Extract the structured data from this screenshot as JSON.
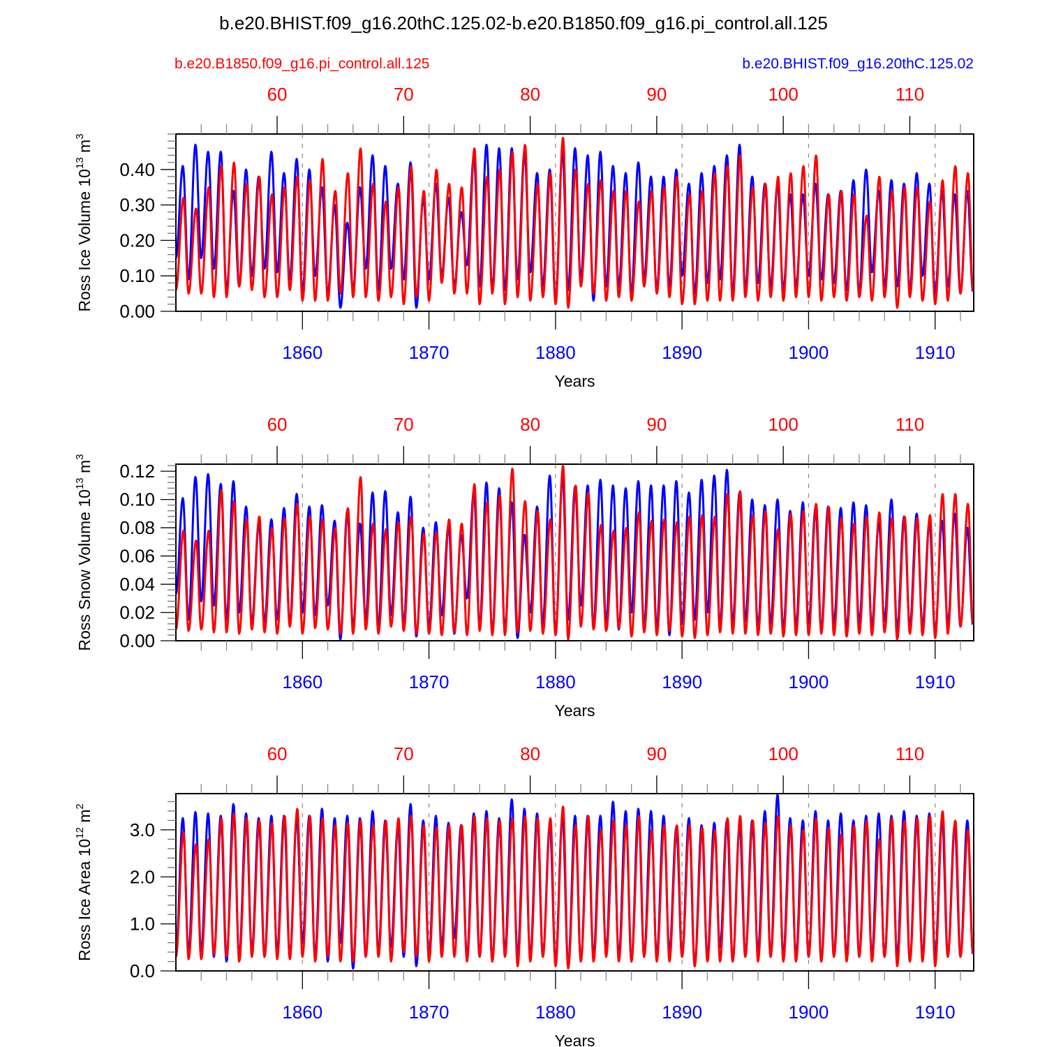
{
  "title": "b.e20.BHIST.f09_g16.20thC.125.02-b.e20.B1850.f09_g16.pi_control.all.125",
  "legend": {
    "left_label": "b.e20.B1850.f09_g16.pi_control.all.125",
    "right_label": "b.e20.BHIST.f09_g16.20thC.125.02",
    "left_color": "#ff0000",
    "right_color": "#0000ff"
  },
  "chart_data": [
    {
      "type": "line",
      "title": "",
      "ylabel": "Ross Ice Volume 10^13 m^3",
      "ylabel_base": "Ross Ice Volume 10",
      "ylabel_exp": "13",
      "ylabel_unit": "m",
      "ylabel_unit_exp": "3",
      "xlabel": "Years",
      "xlim": [
        1850.0,
        1913.05
      ],
      "ylim": [
        0.0,
        0.5
      ],
      "yticks": [
        0.0,
        0.1,
        0.2,
        0.3,
        0.4
      ],
      "ytick_labels": [
        "0.00",
        "0.10",
        "0.20",
        "0.30",
        "0.40"
      ],
      "x_bottom_ticks": [
        1860,
        1870,
        1880,
        1890,
        1900,
        1910
      ],
      "x_top_ticks": [
        60,
        70,
        80,
        90,
        100,
        110
      ],
      "x_top_offset": 1798,
      "grid": "dashed vertical at bottom-axis major ticks",
      "series": [
        {
          "name": "b.e20.BHIST.f09_g16.20thC.125.02",
          "color": "#0000ff",
          "annual_max": [
            0.41,
            0.47,
            0.45,
            0.45,
            0.34,
            0.4,
            0.38,
            0.45,
            0.39,
            0.43,
            0.4,
            0.35,
            0.3,
            0.25,
            0.35,
            0.44,
            0.41,
            0.36,
            0.42,
            0.32,
            0.36,
            0.32,
            0.28,
            0.44,
            0.47,
            0.46,
            0.46,
            0.45,
            0.39,
            0.4,
            0.45,
            0.46,
            0.44,
            0.45,
            0.41,
            0.39,
            0.42,
            0.38,
            0.38,
            0.4,
            0.36,
            0.39,
            0.41,
            0.44,
            0.47,
            0.38,
            0.36,
            0.36,
            0.33,
            0.33,
            0.36,
            0.33,
            0.34,
            0.37,
            0.4,
            0.34,
            0.37,
            0.36,
            0.39,
            0.36,
            0.34,
            0.33,
            0.34
          ],
          "annual_min": [
            0.15,
            0.09,
            0.15,
            0.12,
            0.06,
            0.07,
            0.1,
            0.12,
            0.11,
            0.09,
            0.05,
            0.1,
            0.05,
            0.01,
            0.06,
            0.12,
            0.06,
            0.12,
            0.09,
            0.01,
            0.09,
            0.1,
            0.07,
            0.13,
            0.07,
            0.06,
            0.06,
            0.09,
            0.11,
            0.07,
            0.03,
            0.06,
            0.09,
            0.03,
            0.07,
            0.07,
            0.05,
            0.09,
            0.06,
            0.07,
            0.1,
            0.05,
            0.08,
            0.09,
            0.05,
            0.06,
            0.08,
            0.07,
            0.06,
            0.07,
            0.1,
            0.09,
            0.08,
            0.06,
            0.05,
            0.11,
            0.07,
            0.07,
            0.06,
            0.1,
            0.05,
            0.07,
            0.05
          ]
        },
        {
          "name": "b.e20.B1850.f09_g16.pi_control.all.125",
          "color": "#ff0000",
          "annual_max": [
            0.32,
            0.29,
            0.35,
            0.41,
            0.42,
            0.36,
            0.38,
            0.33,
            0.35,
            0.38,
            0.37,
            0.43,
            0.34,
            0.39,
            0.46,
            0.36,
            0.31,
            0.35,
            0.41,
            0.34,
            0.4,
            0.36,
            0.35,
            0.46,
            0.38,
            0.4,
            0.45,
            0.47,
            0.36,
            0.39,
            0.49,
            0.4,
            0.36,
            0.37,
            0.34,
            0.34,
            0.31,
            0.34,
            0.35,
            0.38,
            0.33,
            0.34,
            0.39,
            0.41,
            0.44,
            0.35,
            0.36,
            0.38,
            0.39,
            0.41,
            0.44,
            0.33,
            0.34,
            0.33,
            0.27,
            0.38,
            0.34,
            0.35,
            0.35,
            0.31,
            0.37,
            0.41,
            0.39
          ],
          "annual_min": [
            0.06,
            0.05,
            0.05,
            0.04,
            0.04,
            0.07,
            0.06,
            0.04,
            0.04,
            0.06,
            0.03,
            0.03,
            0.03,
            0.05,
            0.04,
            0.04,
            0.03,
            0.04,
            0.02,
            0.04,
            0.03,
            0.08,
            0.05,
            0.05,
            0.02,
            0.05,
            0.02,
            0.04,
            0.03,
            0.04,
            0.02,
            0.01,
            0.07,
            0.05,
            0.03,
            0.04,
            0.03,
            0.07,
            0.05,
            0.04,
            0.02,
            0.02,
            0.03,
            0.03,
            0.03,
            0.04,
            0.03,
            0.04,
            0.03,
            0.04,
            0.04,
            0.03,
            0.04,
            0.03,
            0.04,
            0.03,
            0.04,
            0.01,
            0.04,
            0.03,
            0.02,
            0.03,
            0.05
          ]
        }
      ]
    },
    {
      "type": "line",
      "title": "",
      "ylabel": "Ross Snow Volume 10^13 m^3",
      "ylabel_base": "Ross Snow Volume 10",
      "ylabel_exp": "13",
      "ylabel_unit": "m",
      "ylabel_unit_exp": "3",
      "xlabel": "Years",
      "xlim": [
        1850.0,
        1913.05
      ],
      "ylim": [
        0.0,
        0.125
      ],
      "yticks": [
        0.0,
        0.02,
        0.04,
        0.06,
        0.08,
        0.1,
        0.12
      ],
      "ytick_labels": [
        "0.00",
        "0.02",
        "0.04",
        "0.06",
        "0.08",
        "0.10",
        "0.12"
      ],
      "x_bottom_ticks": [
        1860,
        1870,
        1880,
        1890,
        1900,
        1910
      ],
      "x_top_ticks": [
        60,
        70,
        80,
        90,
        100,
        110
      ],
      "x_top_offset": 1798,
      "grid": "dashed vertical at bottom-axis major ticks",
      "series": [
        {
          "name": "b.e20.BHIST.f09_g16.20thC.125.02",
          "color": "#0000ff",
          "annual_max": [
            0.101,
            0.116,
            0.118,
            0.111,
            0.113,
            0.095,
            0.083,
            0.086,
            0.094,
            0.104,
            0.095,
            0.096,
            0.085,
            0.092,
            0.083,
            0.105,
            0.106,
            0.091,
            0.102,
            0.08,
            0.084,
            0.082,
            0.075,
            0.106,
            0.112,
            0.108,
            0.098,
            0.075,
            0.095,
            0.117,
            0.117,
            0.109,
            0.11,
            0.114,
            0.11,
            0.108,
            0.113,
            0.11,
            0.11,
            0.113,
            0.105,
            0.114,
            0.117,
            0.121,
            0.105,
            0.1,
            0.096,
            0.1,
            0.092,
            0.098,
            0.094,
            0.095,
            0.094,
            0.098,
            0.096,
            0.084,
            0.1,
            0.088,
            0.09,
            0.084,
            0.085,
            0.09,
            0.08
          ],
          "annual_min": [
            0.033,
            0.015,
            0.028,
            0.025,
            0.015,
            0.02,
            0.012,
            0.013,
            0.015,
            0.012,
            0.02,
            0.018,
            0.025,
            0.001,
            0.01,
            0.015,
            0.01,
            0.018,
            0.012,
            0.003,
            0.01,
            0.018,
            0.005,
            0.03,
            0.01,
            0.005,
            0.008,
            0.002,
            0.02,
            0.012,
            0.004,
            0.015,
            0.025,
            0.01,
            0.012,
            0.008,
            0.02,
            0.01,
            0.008,
            0.004,
            0.012,
            0.015,
            0.02,
            0.01,
            0.012,
            0.014,
            0.01,
            0.012,
            0.008,
            0.01,
            0.012,
            0.008,
            0.012,
            0.008,
            0.012,
            0.01,
            0.014,
            0.008,
            0.01,
            0.01,
            0.005,
            0.012,
            0.01
          ]
        },
        {
          "name": "b.e20.B1850.f09_g16.pi_control.all.125",
          "color": "#ff0000",
          "annual_max": [
            0.078,
            0.071,
            0.078,
            0.107,
            0.099,
            0.086,
            0.088,
            0.08,
            0.087,
            0.097,
            0.088,
            0.086,
            0.08,
            0.094,
            0.116,
            0.083,
            0.079,
            0.084,
            0.088,
            0.076,
            0.077,
            0.086,
            0.083,
            0.111,
            0.098,
            0.103,
            0.122,
            0.099,
            0.092,
            0.086,
            0.124,
            0.11,
            0.105,
            0.082,
            0.078,
            0.08,
            0.091,
            0.085,
            0.086,
            0.084,
            0.088,
            0.089,
            0.088,
            0.104,
            0.106,
            0.089,
            0.092,
            0.079,
            0.09,
            0.092,
            0.097,
            0.095,
            0.087,
            0.083,
            0.088,
            0.091,
            0.087,
            0.088,
            0.087,
            0.089,
            0.104,
            0.104,
            0.097
          ],
          "annual_min": [
            0.008,
            0.007,
            0.008,
            0.006,
            0.006,
            0.005,
            0.008,
            0.006,
            0.005,
            0.01,
            0.005,
            0.009,
            0.008,
            0.005,
            0.005,
            0.008,
            0.005,
            0.01,
            0.007,
            0.005,
            0.005,
            0.004,
            0.006,
            0.004,
            0.007,
            0.004,
            0.004,
            0.006,
            0.007,
            0.005,
            0.004,
            0.001,
            0.01,
            0.008,
            0.007,
            0.009,
            0.003,
            0.006,
            0.004,
            0.007,
            0.003,
            0.002,
            0.004,
            0.006,
            0.005,
            0.005,
            0.004,
            0.005,
            0.003,
            0.004,
            0.004,
            0.005,
            0.004,
            0.003,
            0.005,
            0.004,
            0.006,
            0.001,
            0.005,
            0.004,
            0.002,
            0.005,
            0.01
          ]
        }
      ]
    },
    {
      "type": "line",
      "title": "",
      "ylabel": "Ross Ice Area 10^12 m^2",
      "ylabel_base": "Ross Ice Area 10",
      "ylabel_exp": "12",
      "ylabel_unit": "m",
      "ylabel_unit_exp": "2",
      "xlabel": "Years",
      "xlim": [
        1850.0,
        1913.05
      ],
      "ylim": [
        0.0,
        3.77
      ],
      "yticks": [
        0.0,
        1.0,
        2.0,
        3.0
      ],
      "ytick_labels": [
        "0.0",
        "1.0",
        "2.0",
        "3.0"
      ],
      "x_bottom_ticks": [
        1860,
        1870,
        1880,
        1890,
        1900,
        1910
      ],
      "x_top_ticks": [
        60,
        70,
        80,
        90,
        100,
        110
      ],
      "x_top_offset": 1798,
      "grid": "dashed vertical at bottom-axis major ticks",
      "series": [
        {
          "name": "b.e20.BHIST.f09_g16.20thC.125.02",
          "color": "#0000ff",
          "annual_max": [
            3.25,
            3.38,
            3.35,
            3.3,
            3.55,
            3.35,
            3.25,
            3.3,
            3.3,
            3.25,
            3.3,
            3.45,
            3.25,
            3.3,
            3.25,
            3.4,
            3.2,
            3.1,
            3.55,
            3.2,
            3.3,
            3.15,
            3.1,
            3.35,
            3.4,
            3.25,
            3.65,
            3.45,
            3.35,
            3.1,
            3.3,
            3.3,
            3.3,
            3.3,
            3.6,
            3.4,
            3.45,
            3.4,
            3.3,
            3.05,
            3.25,
            3.1,
            3.15,
            3.2,
            3.1,
            3.2,
            3.4,
            3.75,
            3.25,
            3.2,
            3.4,
            3.2,
            3.35,
            3.2,
            3.3,
            3.35,
            3.3,
            3.4,
            3.3,
            3.35,
            3.25,
            3.1,
            3.2
          ],
          "annual_min": [
            0.35,
            0.4,
            0.4,
            0.3,
            0.2,
            0.3,
            0.4,
            0.3,
            0.4,
            0.3,
            0.6,
            0.3,
            0.2,
            0.6,
            0.05,
            0.3,
            0.4,
            0.5,
            0.3,
            0.1,
            0.3,
            0.5,
            0.7,
            0.3,
            0.3,
            0.2,
            0.4,
            0.3,
            0.3,
            0.3,
            0.2,
            0.1,
            0.2,
            0.3,
            0.4,
            0.3,
            0.2,
            0.3,
            0.3,
            0.4,
            0.3,
            0.1,
            0.3,
            0.5,
            0.2,
            0.3,
            0.4,
            0.3,
            0.3,
            0.3,
            0.3,
            0.2,
            0.3,
            0.3,
            0.3,
            0.3,
            0.3,
            0.3,
            0.2,
            0.3,
            0.3,
            0.3,
            0.3
          ]
        },
        {
          "name": "b.e20.B1850.f09_g16.pi_control.all.125",
          "color": "#ff0000",
          "annual_max": [
            2.95,
            2.7,
            2.8,
            3.25,
            3.35,
            3.25,
            3.2,
            3.15,
            3.3,
            3.45,
            3.3,
            3.25,
            3.1,
            3.15,
            3.2,
            3.1,
            3.2,
            3.25,
            3.3,
            3.1,
            3.05,
            3.1,
            3.1,
            3.3,
            3.25,
            3.2,
            3.25,
            3.3,
            3.25,
            3.25,
            3.5,
            3.1,
            3.3,
            3.0,
            3.2,
            3.1,
            3.3,
            3.0,
            3.1,
            3.1,
            3.1,
            3.05,
            3.0,
            3.25,
            3.3,
            3.2,
            3.15,
            3.3,
            3.1,
            3.0,
            3.25,
            3.05,
            2.9,
            3.1,
            3.2,
            2.8,
            3.25,
            3.2,
            3.25,
            3.3,
            3.4,
            3.2,
            3.0
          ],
          "annual_min": [
            0.3,
            0.25,
            0.25,
            0.35,
            0.3,
            0.2,
            0.3,
            0.3,
            0.25,
            0.25,
            0.3,
            0.2,
            0.3,
            0.2,
            0.2,
            0.3,
            0.3,
            0.2,
            0.4,
            0.3,
            0.2,
            0.3,
            0.3,
            0.2,
            0.3,
            0.2,
            0.3,
            0.1,
            0.2,
            0.3,
            0.1,
            0.05,
            0.2,
            0.2,
            0.3,
            0.2,
            0.2,
            0.3,
            0.2,
            0.2,
            0.3,
            0.1,
            0.2,
            0.2,
            0.2,
            0.3,
            0.2,
            0.3,
            0.2,
            0.2,
            0.3,
            0.2,
            0.3,
            0.2,
            0.3,
            0.2,
            0.3,
            0.1,
            0.2,
            0.2,
            0.1,
            0.3,
            0.3
          ]
        }
      ]
    }
  ]
}
